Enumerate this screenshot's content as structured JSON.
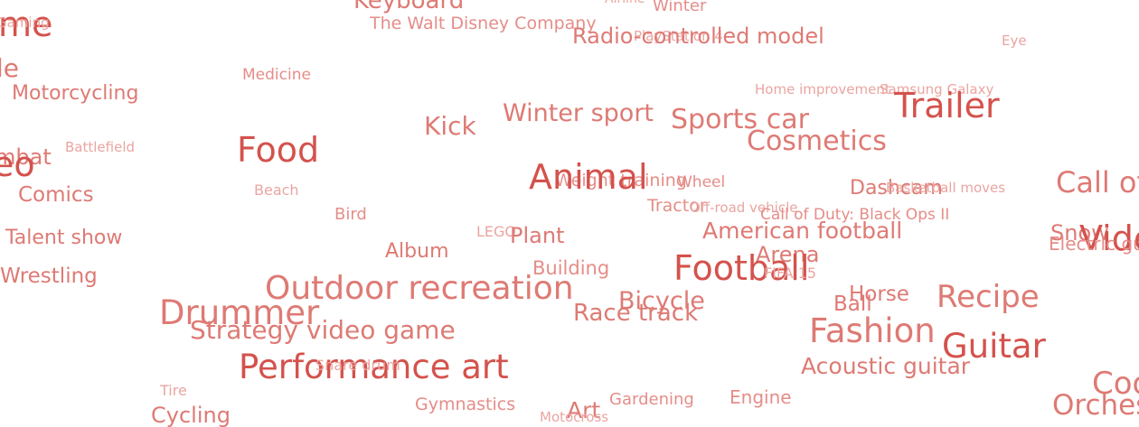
{
  "words": [
    {
      "text": "Keyboard",
      "size": 26,
      "color": "#de7a74"
    },
    {
      "text": "Airline",
      "size": 14,
      "color": "#eaa5a1"
    },
    {
      "text": "Winter",
      "size": 18,
      "color": "#e58d88"
    },
    {
      "text": "me",
      "size": 38,
      "color": "#d4524c"
    },
    {
      "text": "Gaming",
      "size": 15,
      "color": "#eaa5a1"
    },
    {
      "text": "The Walt Disney Company",
      "size": 19,
      "color": "#e58d88"
    },
    {
      "text": "PlayStation 4",
      "size": 15,
      "color": "#eaa5a1"
    },
    {
      "text": "Radio-controlled model",
      "size": 24,
      "color": "#de7a74"
    },
    {
      "text": "Eye",
      "size": 15,
      "color": "#eaa5a1"
    },
    {
      "text": "le",
      "size": 28,
      "color": "#de7a74"
    },
    {
      "text": "Medicine",
      "size": 17,
      "color": "#e58d88"
    },
    {
      "text": "Motorcycling",
      "size": 22,
      "color": "#de7a74"
    },
    {
      "text": "Home improvement",
      "size": 15,
      "color": "#eaa5a1"
    },
    {
      "text": "Samsung Galaxy",
      "size": 15,
      "color": "#eaa5a1"
    },
    {
      "text": "Trailer",
      "size": 38,
      "color": "#d4524c"
    },
    {
      "text": "Winter sport",
      "size": 27,
      "color": "#de7a74"
    },
    {
      "text": "Kick",
      "size": 28,
      "color": "#de7a74"
    },
    {
      "text": "Sports car",
      "size": 30,
      "color": "#de7a74"
    },
    {
      "text": "Battlefield",
      "size": 15,
      "color": "#eaa5a1"
    },
    {
      "text": "Food",
      "size": 38,
      "color": "#d4524c"
    },
    {
      "text": "Cosmetics",
      "size": 30,
      "color": "#de7a74"
    },
    {
      "text": "mbat",
      "size": 24,
      "color": "#de7a74"
    },
    {
      "text": "eo",
      "size": 38,
      "color": "#d4524c"
    },
    {
      "text": "Weight training",
      "size": 19,
      "color": "#e58d88"
    },
    {
      "text": "Animal",
      "size": 38,
      "color": "#d4524c"
    },
    {
      "text": "Wheel",
      "size": 17,
      "color": "#e58d88"
    },
    {
      "text": "Dashcam",
      "size": 22,
      "color": "#de7a74"
    },
    {
      "text": "Basketball moves",
      "size": 15,
      "color": "#eaa5a1"
    },
    {
      "text": "Call of",
      "size": 32,
      "color": "#de7a74"
    },
    {
      "text": "Beach",
      "size": 16,
      "color": "#eaa5a1"
    },
    {
      "text": "Comics",
      "size": 23,
      "color": "#de7a74"
    },
    {
      "text": "Tractor",
      "size": 19,
      "color": "#e58d88"
    },
    {
      "text": "Off-road vehicle",
      "size": 15,
      "color": "#eaa5a1"
    },
    {
      "text": "Call of Duty: Black Ops II",
      "size": 17,
      "color": "#e58d88"
    },
    {
      "text": "Bird",
      "size": 18,
      "color": "#e58d88"
    },
    {
      "text": "LEGO",
      "size": 16,
      "color": "#eaa5a1"
    },
    {
      "text": "Plant",
      "size": 24,
      "color": "#de7a74"
    },
    {
      "text": "American football",
      "size": 25,
      "color": "#de7a74"
    },
    {
      "text": "Snow",
      "size": 24,
      "color": "#de7a74"
    },
    {
      "text": "Vide",
      "size": 38,
      "color": "#d4524c"
    },
    {
      "text": "Electric guitar",
      "size": 20,
      "color": "#e58d88"
    },
    {
      "text": "Talent show",
      "size": 22,
      "color": "#de7a74"
    },
    {
      "text": "Album",
      "size": 22,
      "color": "#de7a74"
    },
    {
      "text": "Arena",
      "size": 24,
      "color": "#de7a74"
    },
    {
      "text": "Building",
      "size": 21,
      "color": "#e58d88"
    },
    {
      "text": "Football",
      "size": 38,
      "color": "#d4524c"
    },
    {
      "text": "FIFA 15",
      "size": 16,
      "color": "#eaa5a1"
    },
    {
      "text": "Wrestling",
      "size": 23,
      "color": "#de7a74"
    },
    {
      "text": "Outdoor recreation",
      "size": 36,
      "color": "#de7a74"
    },
    {
      "text": "Horse",
      "size": 23,
      "color": "#de7a74"
    },
    {
      "text": "Recipe",
      "size": 34,
      "color": "#de7a74"
    },
    {
      "text": "Bicycle",
      "size": 27,
      "color": "#de7a74"
    },
    {
      "text": "Ball",
      "size": 23,
      "color": "#de7a74"
    },
    {
      "text": "Drummer",
      "size": 37,
      "color": "#de7a74"
    },
    {
      "text": "Race track",
      "size": 26,
      "color": "#de7a74"
    },
    {
      "text": "Strategy video game",
      "size": 28,
      "color": "#de7a74"
    },
    {
      "text": "Fashion",
      "size": 37,
      "color": "#de7a74"
    },
    {
      "text": "Guitar",
      "size": 37,
      "color": "#d4524c"
    },
    {
      "text": "Performance art",
      "size": 37,
      "color": "#d4524c"
    },
    {
      "text": "Snare drum",
      "size": 16,
      "color": "#eaa5a1"
    },
    {
      "text": "Acoustic guitar",
      "size": 25,
      "color": "#de7a74"
    },
    {
      "text": "Coo",
      "size": 34,
      "color": "#de7a74"
    },
    {
      "text": "Tire",
      "size": 16,
      "color": "#eaa5a1"
    },
    {
      "text": "Gardening",
      "size": 18,
      "color": "#e58d88"
    },
    {
      "text": "Engine",
      "size": 20,
      "color": "#e58d88"
    },
    {
      "text": "Gymnastics",
      "size": 19,
      "color": "#e58d88"
    },
    {
      "text": "Art",
      "size": 25,
      "color": "#de7a74"
    },
    {
      "text": "Orches",
      "size": 31,
      "color": "#de7a74"
    },
    {
      "text": "Cycling",
      "size": 24,
      "color": "#de7a74"
    },
    {
      "text": "Motocross",
      "size": 15,
      "color": "#eaa5a1"
    }
  ]
}
